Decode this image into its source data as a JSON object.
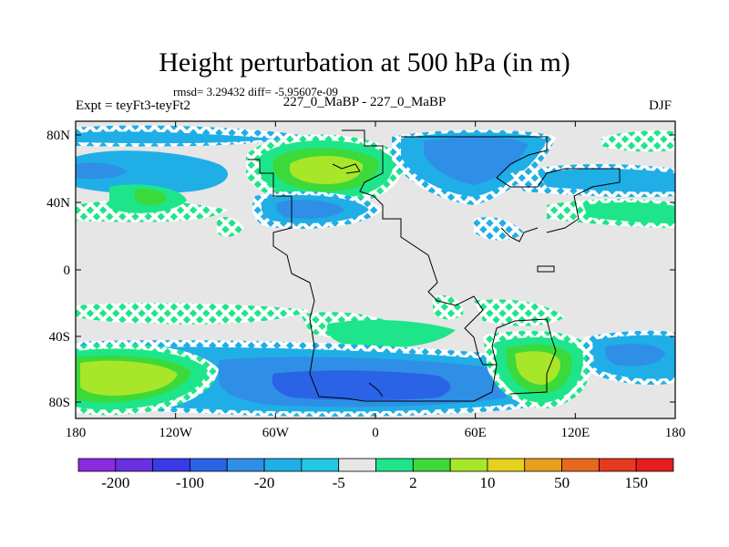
{
  "header": {
    "title": "Height perturbation at 500 hPa (in m)",
    "stats": "rmsd= 3.29432 diff= -5.95607e-09",
    "left_string": "Expt = teyFt3-teyFt2",
    "center_string": "227_0_MaBP - 227_0_MaBP",
    "right_string": "DJF"
  },
  "axes": {
    "lon_labels": [
      "180",
      "120W",
      "60W",
      "0",
      "60E",
      "120E",
      "180"
    ],
    "lat_labels": [
      "80N",
      "40N",
      "0",
      "40S",
      "80S"
    ]
  },
  "colorbar": {
    "colors": [
      "#8a2be2",
      "#6a2fe0",
      "#3a3ae6",
      "#2a63e6",
      "#2f8fe6",
      "#20aee6",
      "#22c7e6",
      "#e6e6e6",
      "#1ee58a",
      "#3cd93a",
      "#a8e629",
      "#e6d21e",
      "#e6a01e",
      "#e66a1e",
      "#e63a1e",
      "#e61e1e"
    ],
    "labels": [
      "-200",
      "-100",
      "-20",
      "-5",
      "2",
      "10",
      "50",
      "150"
    ]
  }
}
